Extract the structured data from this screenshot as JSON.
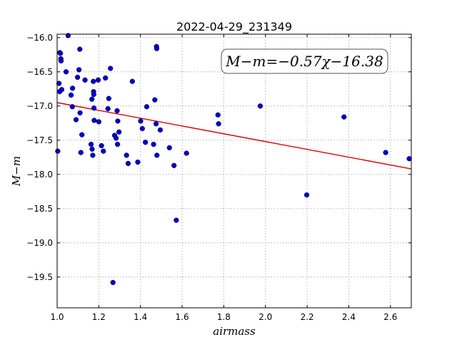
{
  "chart_data": {
    "type": "scatter",
    "title": "2022-04-29_231349",
    "xlabel": "airmass",
    "ylabel": "M−m",
    "annotation": "M−m=−0.57χ−16.38",
    "xlim": [
      1.0,
      2.7
    ],
    "ylim": [
      -19.95,
      -15.95
    ],
    "y_inverted": true,
    "grid": true,
    "xticks": [
      1.0,
      1.2,
      1.4,
      1.6,
      1.8,
      2.0,
      2.2,
      2.4,
      2.6
    ],
    "yticks": [
      -16.0,
      -16.5,
      -17.0,
      -17.5,
      -18.0,
      -18.5,
      -19.0,
      -19.5
    ],
    "xtick_labels": [
      "1.0",
      "1.2",
      "1.4",
      "1.6",
      "1.8",
      "2.0",
      "2.2",
      "2.4",
      "2.6"
    ],
    "ytick_labels": [
      "−16.0",
      "−16.5",
      "−17.0",
      "−17.5",
      "−18.0",
      "−18.5",
      "−19.0",
      "−19.5"
    ],
    "marker_color": "#0000cc",
    "fit_color": "#dd0000",
    "fit": {
      "slope": -0.57,
      "intercept": -16.38,
      "x_range": [
        1.0,
        2.7
      ]
    },
    "points": [
      [
        1.003,
        -17.66
      ],
      [
        1.009,
        -16.67
      ],
      [
        1.012,
        -16.79
      ],
      [
        1.013,
        -16.22
      ],
      [
        1.016,
        -16.23
      ],
      [
        1.018,
        -16.31
      ],
      [
        1.019,
        -16.34
      ],
      [
        1.022,
        -16.76
      ],
      [
        1.043,
        -16.5
      ],
      [
        1.053,
        -15.97
      ],
      [
        1.067,
        -16.84
      ],
      [
        1.073,
        -17.01
      ],
      [
        1.074,
        -16.74
      ],
      [
        1.091,
        -17.2
      ],
      [
        1.098,
        -16.58
      ],
      [
        1.105,
        -16.47
      ],
      [
        1.109,
        -16.17
      ],
      [
        1.11,
        -17.1
      ],
      [
        1.114,
        -17.68
      ],
      [
        1.119,
        -17.42
      ],
      [
        1.134,
        -16.62
      ],
      [
        1.163,
        -17.56
      ],
      [
        1.167,
        -16.9
      ],
      [
        1.168,
        -17.63
      ],
      [
        1.171,
        -17.72
      ],
      [
        1.174,
        -16.64
      ],
      [
        1.175,
        -16.79
      ],
      [
        1.176,
        -16.83
      ],
      [
        1.177,
        -17.03
      ],
      [
        1.178,
        -17.21
      ],
      [
        1.197,
        -16.62
      ],
      [
        1.2,
        -17.23
      ],
      [
        1.213,
        -17.58
      ],
      [
        1.222,
        -17.66
      ],
      [
        1.232,
        -16.59
      ],
      [
        1.244,
        -17.04
      ],
      [
        1.248,
        -16.89
      ],
      [
        1.256,
        -16.45
      ],
      [
        1.268,
        -19.58
      ],
      [
        1.276,
        -17.43
      ],
      [
        1.283,
        -17.47
      ],
      [
        1.288,
        -17.07
      ],
      [
        1.29,
        -17.56
      ],
      [
        1.291,
        -17.22
      ],
      [
        1.297,
        -17.38
      ],
      [
        1.333,
        -17.72
      ],
      [
        1.341,
        -17.84
      ],
      [
        1.361,
        -16.64
      ],
      [
        1.387,
        -17.82
      ],
      [
        1.401,
        -17.22
      ],
      [
        1.409,
        -17.33
      ],
      [
        1.424,
        -17.53
      ],
      [
        1.43,
        -17.01
      ],
      [
        1.463,
        -17.56
      ],
      [
        1.469,
        -16.91
      ],
      [
        1.475,
        -17.26
      ],
      [
        1.477,
        -16.13
      ],
      [
        1.478,
        -16.16
      ],
      [
        1.479,
        -17.72
      ],
      [
        1.495,
        -17.35
      ],
      [
        1.539,
        -17.61
      ],
      [
        1.561,
        -17.87
      ],
      [
        1.572,
        -18.67
      ],
      [
        1.621,
        -17.69
      ],
      [
        1.772,
        -17.13
      ],
      [
        1.775,
        -17.26
      ],
      [
        1.975,
        -17.0
      ],
      [
        2.198,
        -18.3
      ],
      [
        2.377,
        -17.16
      ],
      [
        2.577,
        -17.68
      ],
      [
        2.69,
        -17.77
      ]
    ]
  }
}
